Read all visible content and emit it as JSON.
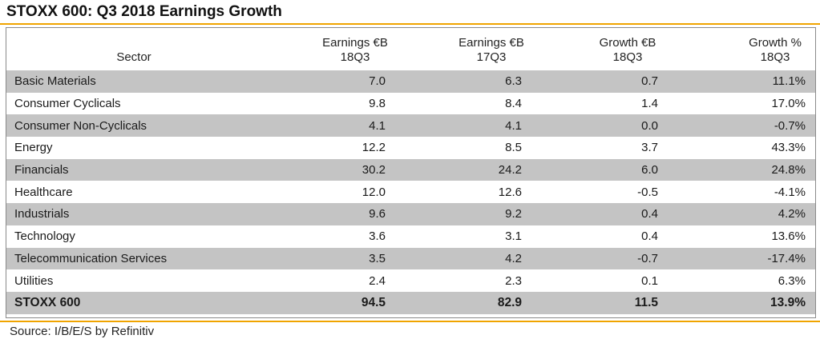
{
  "title": "STOXX 600: Q3 2018 Earnings Growth",
  "source": "Source: I/B/E/S by Refinitiv",
  "colors": {
    "accent": "#f0a400",
    "row_shade": "#c4c4c4"
  },
  "chart_data": {
    "type": "table",
    "title": "STOXX 600: Q3 2018 Earnings Growth",
    "columns": [
      {
        "line1": "",
        "line2": "Sector"
      },
      {
        "line1": "Earnings €B",
        "line2": "18Q3"
      },
      {
        "line1": "Earnings €B",
        "line2": "17Q3"
      },
      {
        "line1": "Growth €B",
        "line2": "18Q3"
      },
      {
        "line1": "Growth %",
        "line2": "18Q3"
      }
    ],
    "rows": [
      [
        "Basic Materials",
        "7.0",
        "6.3",
        "0.7",
        "11.1%"
      ],
      [
        "Consumer Cyclicals",
        "9.8",
        "8.4",
        "1.4",
        "17.0%"
      ],
      [
        "Consumer Non-Cyclicals",
        "4.1",
        "4.1",
        "0.0",
        "-0.7%"
      ],
      [
        "Energy",
        "12.2",
        "8.5",
        "3.7",
        "43.3%"
      ],
      [
        "Financials",
        "30.2",
        "24.2",
        "6.0",
        "24.8%"
      ],
      [
        "Healthcare",
        "12.0",
        "12.6",
        "-0.5",
        "-4.1%"
      ],
      [
        "Industrials",
        "9.6",
        "9.2",
        "0.4",
        "4.2%"
      ],
      [
        "Technology",
        "3.6",
        "3.1",
        "0.4",
        "13.6%"
      ],
      [
        "Telecommunication Services",
        "3.5",
        "4.2",
        "-0.7",
        "-17.4%"
      ],
      [
        "Utilities",
        "2.4",
        "2.3",
        "0.1",
        "6.3%"
      ]
    ],
    "total": [
      "STOXX 600",
      "94.5",
      "82.9",
      "11.5",
      "13.9%"
    ]
  }
}
